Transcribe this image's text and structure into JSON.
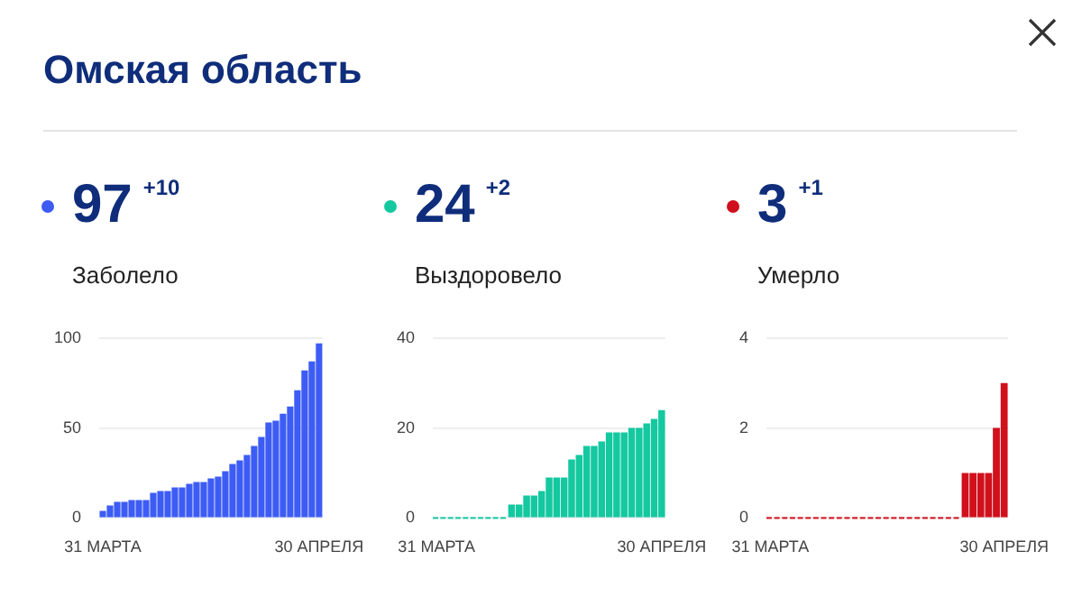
{
  "chart_data": [
    {
      "type": "other",
      "title": "Омская область"
    },
    {
      "type": "bar",
      "title": "Заболело",
      "annotations": [
        "97",
        "+10"
      ],
      "color": "#3d5cf5",
      "categories": [
        "31 МАРТА",
        null,
        null,
        null,
        null,
        null,
        null,
        null,
        null,
        null,
        null,
        null,
        null,
        null,
        null,
        null,
        null,
        null,
        null,
        null,
        null,
        null,
        null,
        null,
        null,
        null,
        null,
        null,
        null,
        null,
        "30 АПРЕЛЯ"
      ],
      "values": [
        4,
        7,
        9,
        9,
        10,
        10,
        10,
        14,
        15,
        15,
        17,
        17,
        19,
        20,
        20,
        22,
        23,
        26,
        30,
        32,
        35,
        40,
        45,
        53,
        54,
        58,
        62,
        71,
        82,
        87,
        97
      ],
      "ylim": [
        0,
        100
      ],
      "yticks": [
        0,
        50,
        100
      ],
      "grid": "y",
      "legend": false
    },
    {
      "type": "bar",
      "title": "Выздоровело",
      "annotations": [
        "24",
        "+2"
      ],
      "color": "#14c8a0",
      "categories": [
        "31 МАРТА",
        null,
        null,
        null,
        null,
        null,
        null,
        null,
        null,
        null,
        null,
        null,
        null,
        null,
        null,
        null,
        null,
        null,
        null,
        null,
        null,
        null,
        null,
        null,
        null,
        null,
        null,
        null,
        null,
        null,
        "30 АПРЕЛЯ"
      ],
      "values": [
        0,
        0,
        0,
        0,
        0,
        0,
        0,
        0,
        0,
        0,
        3,
        3,
        5,
        5,
        6,
        9,
        9,
        9,
        13,
        14,
        16,
        16,
        17,
        19,
        19,
        19,
        20,
        20,
        21,
        22,
        24
      ],
      "ylim": [
        0,
        40
      ],
      "yticks": [
        0,
        20,
        40
      ],
      "grid": "y",
      "legend": false
    },
    {
      "type": "bar",
      "title": "Умерло",
      "annotations": [
        "3",
        "+1"
      ],
      "color": "#d0101c",
      "categories": [
        "31 МАРТА",
        null,
        null,
        null,
        null,
        null,
        null,
        null,
        null,
        null,
        null,
        null,
        null,
        null,
        null,
        null,
        null,
        null,
        null,
        null,
        null,
        null,
        null,
        null,
        null,
        null,
        null,
        null,
        null,
        null,
        "30 АПРЕЛЯ"
      ],
      "values": [
        0,
        0,
        0,
        0,
        0,
        0,
        0,
        0,
        0,
        0,
        0,
        0,
        0,
        0,
        0,
        0,
        0,
        0,
        0,
        0,
        0,
        0,
        0,
        0,
        0,
        1,
        1,
        1,
        1,
        2,
        3
      ],
      "ylim": [
        0,
        4
      ],
      "yticks": [
        0,
        2,
        4
      ],
      "grid": "y",
      "legend": false
    }
  ]
}
